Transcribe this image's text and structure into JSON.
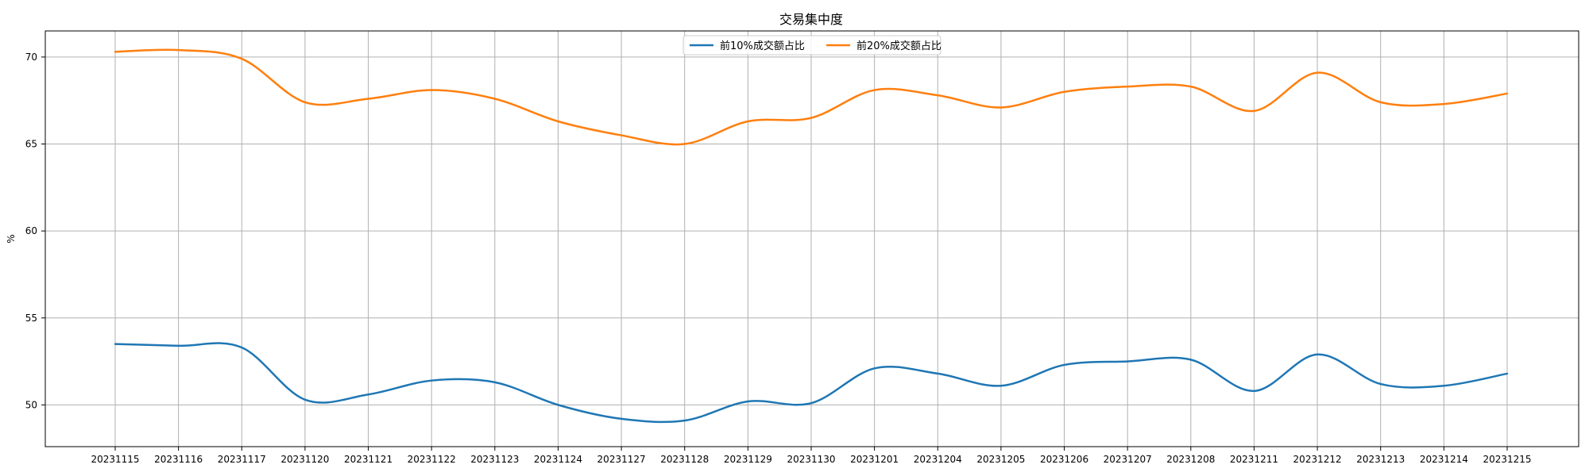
{
  "chart_data": {
    "type": "line",
    "title": "交易集中度",
    "xlabel": "",
    "ylabel": "%",
    "ylim": [
      47.6,
      71.5
    ],
    "yticks": [
      50,
      55,
      60,
      65,
      70
    ],
    "grid": true,
    "legend_position": "top-center",
    "categories": [
      "20231115",
      "20231116",
      "20231117",
      "20231120",
      "20231121",
      "20231122",
      "20231123",
      "20231124",
      "20231127",
      "20231128",
      "20231129",
      "20231130",
      "20231201",
      "20231204",
      "20231205",
      "20231206",
      "20231207",
      "20231208",
      "20231211",
      "20231212",
      "20231213",
      "20231214",
      "20231215"
    ],
    "series": [
      {
        "name": "前10%成交额占比",
        "color": "#1f77b4",
        "values": [
          53.5,
          53.4,
          53.3,
          50.3,
          50.6,
          51.4,
          51.3,
          50.0,
          49.2,
          49.1,
          50.2,
          50.1,
          52.1,
          51.8,
          51.1,
          52.3,
          52.5,
          52.6,
          50.8,
          52.9,
          51.2,
          51.1,
          51.8
        ]
      },
      {
        "name": "前20%成交额占比",
        "color": "#ff7f0e",
        "values": [
          70.3,
          70.4,
          69.9,
          67.4,
          67.6,
          68.1,
          67.6,
          66.3,
          65.5,
          65.0,
          66.3,
          66.5,
          68.1,
          67.8,
          67.1,
          68.0,
          68.3,
          68.3,
          66.9,
          69.1,
          67.4,
          67.3,
          67.9
        ]
      }
    ]
  }
}
